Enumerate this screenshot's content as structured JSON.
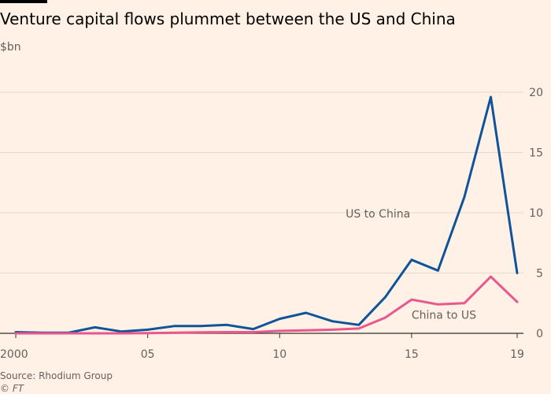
{
  "title": "Venture capital flows plummet between the US and China",
  "source": "Source: Rhodium Group",
  "copyright": "© FT",
  "chart_data": {
    "type": "line",
    "ylabel": "$bn",
    "ylim": [
      0,
      20
    ],
    "yticks": [
      0,
      5,
      10,
      15,
      20
    ],
    "xlim": [
      2000,
      2019
    ],
    "xticks": [
      2000,
      2005,
      2010,
      2015,
      2019
    ],
    "xtick_labels": [
      "2000",
      "05",
      "10",
      "15",
      "19"
    ],
    "x": [
      2000,
      2001,
      2002,
      2003,
      2004,
      2005,
      2006,
      2007,
      2008,
      2009,
      2010,
      2011,
      2012,
      2013,
      2014,
      2015,
      2016,
      2017,
      2018,
      2019
    ],
    "series": [
      {
        "name": "US to China",
        "color": "#0f5499",
        "values": [
          0.1,
          0.05,
          0.05,
          0.5,
          0.15,
          0.3,
          0.6,
          0.6,
          0.7,
          0.35,
          1.2,
          1.7,
          1.0,
          0.7,
          3.0,
          6.1,
          5.2,
          11.3,
          19.6,
          5.0
        ]
      },
      {
        "name": "China to US",
        "color": "#e9578d",
        "values": [
          0.0,
          0.0,
          0.0,
          0.0,
          0.0,
          0.02,
          0.05,
          0.08,
          0.1,
          0.1,
          0.2,
          0.25,
          0.3,
          0.4,
          1.3,
          2.8,
          2.4,
          2.5,
          4.7,
          2.6
        ]
      }
    ]
  }
}
